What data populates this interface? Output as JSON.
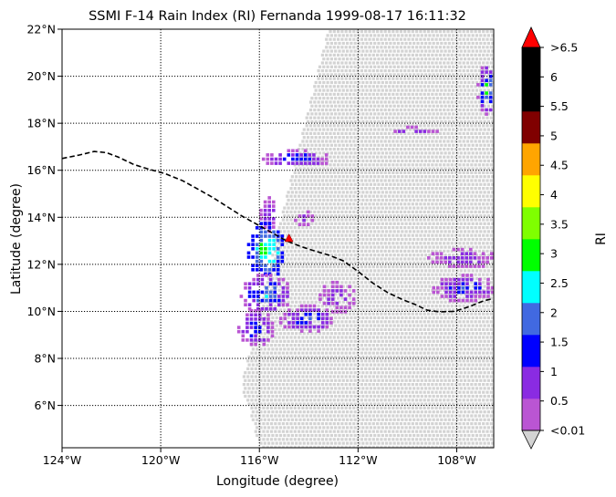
{
  "chart_data": {
    "type": "heatmap",
    "title": "SSMI F-14 Rain Index (RI) Fernanda 1999-08-17 16:11:32",
    "xlabel": "Longitude (degree)",
    "ylabel": "Latitude (degree)",
    "xlim": [
      -124,
      -106.5
    ],
    "ylim": [
      4.2,
      22
    ],
    "x_ticks": [
      "124°W",
      "120°W",
      "116°W",
      "112°W",
      "108°W"
    ],
    "y_ticks": [
      "6°N",
      "8°N",
      "10°N",
      "12°N",
      "14°N",
      "16°N",
      "18°N",
      "20°N",
      "22°N"
    ],
    "grid": true,
    "colorbar": {
      "label": "RI",
      "tick_labels": [
        "<0.01",
        "0.5",
        "1",
        "1.5",
        "2",
        "2.5",
        "3",
        "3.5",
        "4",
        "4.5",
        "5",
        "5.5",
        "6",
        ">6.5"
      ],
      "colors": [
        "#ba55d3",
        "#8a2be2",
        "#0000ff",
        "#4169e1",
        "#00ffff",
        "#00ff00",
        "#7fff00",
        "#ffff00",
        "#ffa500",
        "#800000",
        "#000000",
        "#000000"
      ],
      "under_color": "#d3d3d3",
      "over_color": "#ff0000"
    },
    "no_rain_color": "#d3d3d3",
    "storm_track": [
      [
        -124,
        16.5
      ],
      [
        -123.3,
        16.65
      ],
      [
        -122.7,
        16.8
      ],
      [
        -122.2,
        16.75
      ],
      [
        -121.7,
        16.55
      ],
      [
        -121.1,
        16.25
      ],
      [
        -120.5,
        16.05
      ],
      [
        -119.8,
        15.85
      ],
      [
        -119.1,
        15.55
      ],
      [
        -118.5,
        15.2
      ],
      [
        -117.9,
        14.85
      ],
      [
        -117.3,
        14.45
      ],
      [
        -116.7,
        14.05
      ],
      [
        -116.1,
        13.7
      ],
      [
        -115.5,
        13.35
      ],
      [
        -114.9,
        13.0
      ],
      [
        -114.3,
        12.75
      ],
      [
        -113.7,
        12.55
      ],
      [
        -113.2,
        12.4
      ],
      [
        -112.6,
        12.15
      ],
      [
        -112.0,
        11.7
      ],
      [
        -111.4,
        11.2
      ],
      [
        -110.8,
        10.8
      ],
      [
        -110.2,
        10.5
      ],
      [
        -109.7,
        10.3
      ],
      [
        -109.2,
        10.05
      ],
      [
        -108.7,
        9.98
      ],
      [
        -108.1,
        10.0
      ],
      [
        -107.5,
        10.2
      ],
      [
        -106.9,
        10.45
      ],
      [
        -106.5,
        10.55
      ]
    ],
    "storm_center": [
      -114.8,
      13.1
    ],
    "swath_outline": [
      [
        -113.3,
        22
      ],
      [
        -106.5,
        22
      ],
      [
        -106.5,
        4.2
      ],
      [
        -116.0,
        4.2
      ],
      [
        -116.8,
        7.0
      ],
      [
        -113.3,
        22
      ]
    ],
    "rain_cells": [
      {
        "lon_range": [
          -115.9,
          -113.2
        ],
        "lat_range": [
          16.2,
          16.9
        ],
        "ri": [
          0.3,
          1.7
        ]
      },
      {
        "lon_range": [
          -116.0,
          -115.4
        ],
        "lat_range": [
          13.4,
          14.9
        ],
        "ri": [
          0.3,
          1.2
        ]
      },
      {
        "lon_range": [
          -116.5,
          -115.0
        ],
        "lat_range": [
          11.5,
          13.8
        ],
        "ri": [
          1.0,
          3.2
        ]
      },
      {
        "lon_range": [
          -116.8,
          -114.8
        ],
        "lat_range": [
          10.0,
          11.6
        ],
        "ri": [
          0.3,
          2.4
        ]
      },
      {
        "lon_range": [
          -116.9,
          -115.5
        ],
        "lat_range": [
          8.6,
          10.1
        ],
        "ri": [
          0.3,
          1.7
        ]
      },
      {
        "lon_range": [
          -115.2,
          -113.0
        ],
        "lat_range": [
          9.2,
          10.3
        ],
        "ri": [
          0.3,
          1.6
        ]
      },
      {
        "lon_range": [
          -113.6,
          -112.2
        ],
        "lat_range": [
          10.0,
          11.3
        ],
        "ri": [
          0.2,
          1.0
        ]
      },
      {
        "lon_range": [
          -114.6,
          -113.8
        ],
        "lat_range": [
          13.6,
          14.3
        ],
        "ri": [
          0.2,
          0.9
        ]
      },
      {
        "lon_range": [
          -110.9,
          -108.8
        ],
        "lat_range": [
          17.6,
          17.9
        ],
        "ri": [
          0.2,
          0.9
        ]
      },
      {
        "lon_range": [
          -109.2,
          -106.5
        ],
        "lat_range": [
          11.9,
          12.7
        ],
        "ri": [
          0.2,
          1.0
        ]
      },
      {
        "lon_range": [
          -109.0,
          -106.5
        ],
        "lat_range": [
          10.5,
          11.6
        ],
        "ri": [
          0.2,
          1.7
        ]
      },
      {
        "lon_range": [
          -107.2,
          -106.5
        ],
        "lat_range": [
          18.4,
          20.6
        ],
        "ri": [
          0.3,
          3.0
        ]
      }
    ]
  }
}
